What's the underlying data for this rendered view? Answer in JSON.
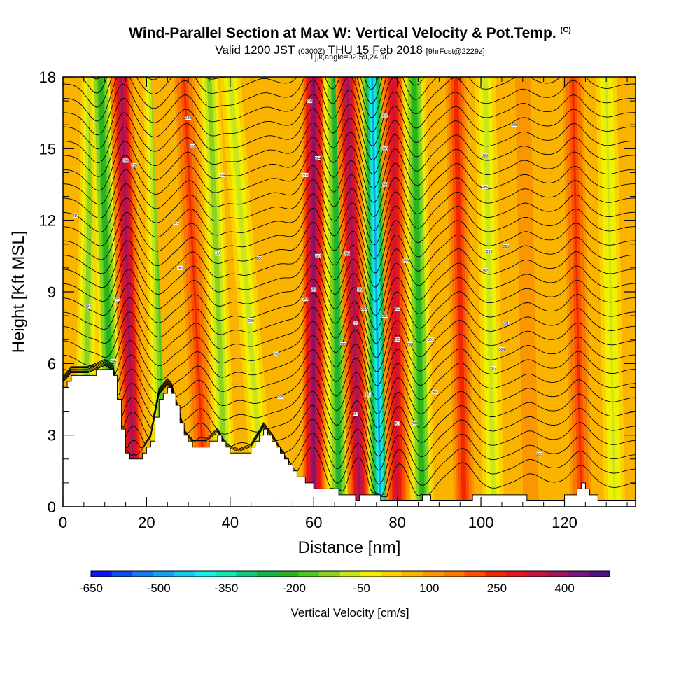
{
  "header": {
    "title": "Wind-Parallel Section at Max W: Vertical Velocity & Pot.Temp.",
    "copyright": "(C)",
    "valid_main": "Valid 1200 JST",
    "valid_utc": "(0300Z)",
    "valid_date": "THU 15 Feb 2018",
    "forecast": "[9hrFcst@2229z]",
    "indices": "i,j,k,angle=92,59,24,90"
  },
  "chart_data": {
    "type": "heatmap",
    "title": "Wind-Parallel Section at Max W: Vertical Velocity & Pot.Temp.",
    "xlabel": "Distance [nm]",
    "ylabel": "Height [Kft MSL]",
    "xlim": [
      0,
      137
    ],
    "ylim": [
      0,
      18
    ],
    "xticks": [
      "0",
      "20",
      "40",
      "60",
      "80",
      "100",
      "120"
    ],
    "yticks": [
      "0",
      "3",
      "6",
      "9",
      "12",
      "15",
      "18"
    ],
    "colorbar": {
      "label": "Vertical Velocity [cm/s]",
      "tick_labels": [
        "-650",
        "-500",
        "-350",
        "-200",
        "-50",
        "100",
        "250",
        "400"
      ],
      "colors": [
        "#0a14f5",
        "#0f4cf0",
        "#1478f0",
        "#14a0f0",
        "#14c8f0",
        "#14f0e6",
        "#14e6b4",
        "#14c882",
        "#14b446",
        "#28b41e",
        "#50c81e",
        "#8cd21e",
        "#c8e61e",
        "#f0f000",
        "#fad200",
        "#fab400",
        "#fa9600",
        "#fa7800",
        "#fa5000",
        "#f02800",
        "#e6141e",
        "#c8143c",
        "#a0145a",
        "#78147d",
        "#501482"
      ],
      "min": -650,
      "max": 500
    },
    "velocity_bands": [
      {
        "x_base": 5,
        "x_top": 7,
        "w": -120
      },
      {
        "x_base": 12,
        "x_top": 9,
        "w": -230
      },
      {
        "x_base": 17,
        "x_top": 14,
        "w": 390
      },
      {
        "x_base": 24,
        "x_top": 22,
        "w": -160
      },
      {
        "x_base": 28,
        "x_top": 24,
        "w": 40
      },
      {
        "x_base": 34,
        "x_top": 29,
        "w": 230
      },
      {
        "x_base": 39,
        "x_top": 35,
        "w": -120
      },
      {
        "x_base": 48,
        "x_top": 40,
        "w": -80
      },
      {
        "x_base": 58,
        "x_top": 48,
        "w": 70
      },
      {
        "x_base": 60,
        "x_top": 60,
        "w": 440
      },
      {
        "x_base": 66,
        "x_top": 65,
        "w": -240
      },
      {
        "x_base": 71,
        "x_top": 68,
        "w": 390
      },
      {
        "x_base": 76,
        "x_top": 74,
        "w": -480
      },
      {
        "x_base": 80,
        "x_top": 79,
        "w": 330
      },
      {
        "x_base": 86,
        "x_top": 84,
        "w": -230
      },
      {
        "x_base": 92,
        "x_top": 90,
        "w": 70
      },
      {
        "x_base": 96,
        "x_top": 94,
        "w": 250
      },
      {
        "x_base": 103,
        "x_top": 101,
        "w": -70
      },
      {
        "x_base": 112,
        "x_top": 110,
        "w": 120
      },
      {
        "x_base": 124,
        "x_top": 122,
        "w": 230
      },
      {
        "x_base": 132,
        "x_top": 130,
        "w": -60
      }
    ],
    "background_w": 60,
    "terrain": [
      [
        0,
        5.1
      ],
      [
        2,
        5.5
      ],
      [
        6,
        5.5
      ],
      [
        10,
        5.8
      ],
      [
        12,
        5.6
      ],
      [
        13,
        4.5
      ],
      [
        14,
        3.2
      ],
      [
        15,
        2.3
      ],
      [
        17,
        1.9
      ],
      [
        19,
        2.3
      ],
      [
        21,
        2.8
      ],
      [
        23,
        4.6
      ],
      [
        25,
        5.0
      ],
      [
        26,
        4.8
      ],
      [
        27,
        4.2
      ],
      [
        29,
        3.0
      ],
      [
        31,
        2.6
      ],
      [
        34,
        2.6
      ],
      [
        37,
        3.0
      ],
      [
        39,
        2.4
      ],
      [
        42,
        2.2
      ],
      [
        45,
        2.4
      ],
      [
        48,
        3.2
      ],
      [
        50,
        2.8
      ],
      [
        53,
        2.0
      ],
      [
        56,
        1.3
      ],
      [
        60,
        0.8
      ],
      [
        66,
        0.6
      ],
      [
        69,
        0.4
      ],
      [
        70,
        0.3
      ],
      [
        71,
        0.4
      ],
      [
        73,
        0.4
      ],
      [
        74,
        0.5
      ],
      [
        76,
        0.3
      ],
      [
        80,
        0.3
      ],
      [
        84,
        0.3
      ],
      [
        86,
        0.4
      ],
      [
        92,
        0.3
      ],
      [
        100,
        0.4
      ],
      [
        104,
        0.5
      ],
      [
        110,
        0.4
      ],
      [
        113,
        0.3
      ],
      [
        118,
        0.3
      ],
      [
        122,
        0.5
      ],
      [
        124,
        0.9
      ],
      [
        126,
        0.5
      ],
      [
        128,
        0.3
      ],
      [
        137,
        0.3
      ]
    ],
    "isentrope_count": 32,
    "isentrope_labels": [
      "280",
      "283",
      "286",
      "289",
      "292",
      "295",
      "298",
      "301",
      "304",
      "307"
    ],
    "grid": false,
    "legend": "colorbar-bottom"
  }
}
